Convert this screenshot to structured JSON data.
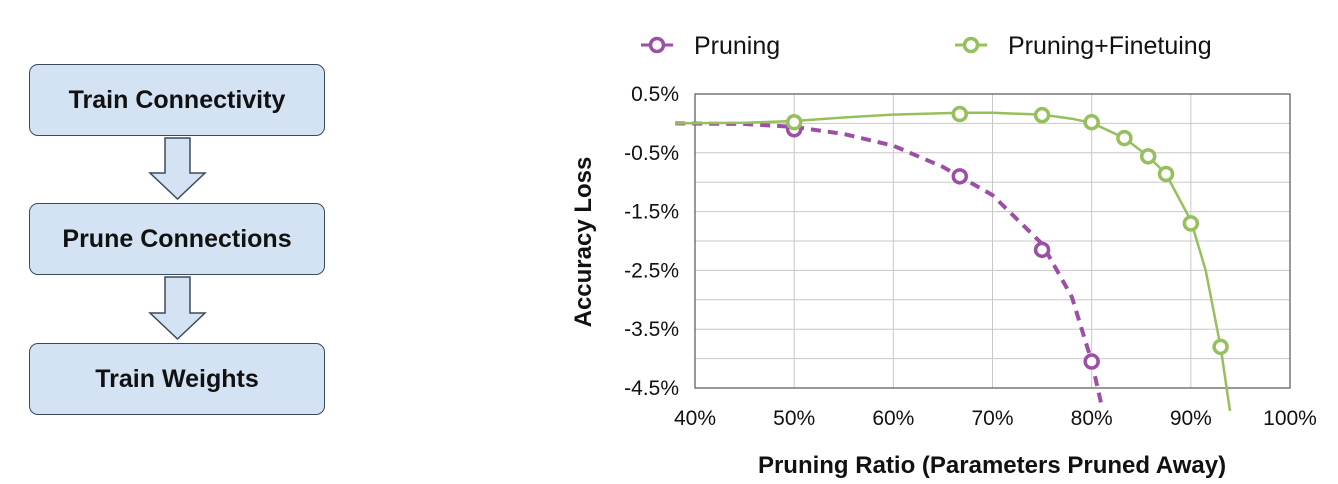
{
  "flowchart": {
    "steps": [
      "Train Connectivity",
      "Prune Connections",
      "Train Weights"
    ]
  },
  "chart_data": {
    "type": "line",
    "xlabel": "Pruning Ratio (Parameters Pruned Away)",
    "ylabel": "Accuracy Loss",
    "xlim": [
      40,
      100
    ],
    "ylim": [
      -4.5,
      0.5
    ],
    "x_ticks": [
      "40%",
      "50%",
      "60%",
      "70%",
      "80%",
      "90%",
      "100%"
    ],
    "y_ticks": [
      "0.5%",
      "-0.5%",
      "-1.5%",
      "-2.5%",
      "-3.5%",
      "-4.5%"
    ],
    "legend_position": "top",
    "grid": true,
    "series": [
      {
        "name": "Pruning",
        "color": "#9b4fa5",
        "line_style": "dashed",
        "points": [
          [
            50,
            -0.1
          ],
          [
            66.7,
            -0.9
          ],
          [
            75,
            -2.15
          ],
          [
            80,
            -4.05
          ]
        ],
        "curve": [
          [
            38,
            0
          ],
          [
            45,
            -0.01
          ],
          [
            50,
            -0.06
          ],
          [
            55,
            -0.18
          ],
          [
            60,
            -0.38
          ],
          [
            65,
            -0.74
          ],
          [
            70,
            -1.22
          ],
          [
            75,
            -2.05
          ],
          [
            78,
            -2.95
          ],
          [
            80,
            -4.05
          ],
          [
            81,
            -4.8
          ]
        ]
      },
      {
        "name": "Pruning+Finetuing",
        "color": "#96bf5e",
        "line_style": "solid",
        "points": [
          [
            50,
            0.02
          ],
          [
            66.7,
            0.16
          ],
          [
            75,
            0.14
          ],
          [
            80,
            0.02
          ],
          [
            83.3,
            -0.25
          ],
          [
            85.7,
            -0.56
          ],
          [
            87.5,
            -0.86
          ],
          [
            90,
            -1.7
          ],
          [
            93,
            -3.8
          ]
        ],
        "curve": [
          [
            38,
            0
          ],
          [
            45,
            0.01
          ],
          [
            50,
            0.04
          ],
          [
            55,
            0.1
          ],
          [
            60,
            0.15
          ],
          [
            66.7,
            0.18
          ],
          [
            70,
            0.18
          ],
          [
            75,
            0.15
          ],
          [
            78,
            0.08
          ],
          [
            80,
            0.01
          ],
          [
            83.3,
            -0.25
          ],
          [
            85.7,
            -0.56
          ],
          [
            87.5,
            -0.86
          ],
          [
            90,
            -1.65
          ],
          [
            91.5,
            -2.5
          ],
          [
            93,
            -3.8
          ],
          [
            94,
            -4.95
          ]
        ]
      }
    ]
  }
}
